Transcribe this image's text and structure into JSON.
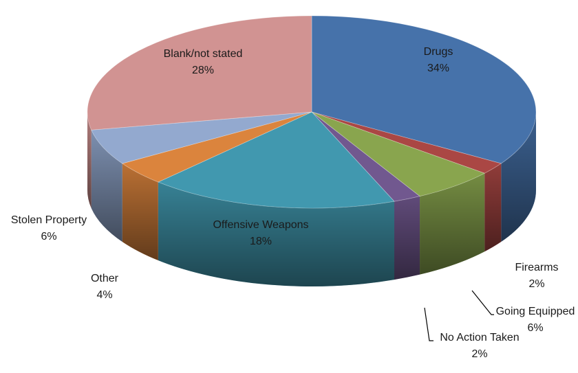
{
  "chart_data": {
    "type": "pie",
    "title": "",
    "style": "3d",
    "slices": [
      {
        "label": "Drugs",
        "value": 34,
        "display": "34%",
        "color": "#4672AA"
      },
      {
        "label": "Firearms",
        "value": 2,
        "display": "2%",
        "color": "#AA4744"
      },
      {
        "label": "Going Equipped",
        "value": 6,
        "display": "6%",
        "color": "#89A54E"
      },
      {
        "label": "No Action Taken",
        "value": 2,
        "display": "2%",
        "color": "#71588F"
      },
      {
        "label": "Offensive Weapons",
        "value": 18,
        "display": "18%",
        "color": "#4198AF"
      },
      {
        "label": "Other",
        "value": 4,
        "display": "4%",
        "color": "#DB843D"
      },
      {
        "label": "Stolen Property",
        "value": 6,
        "display": "6%",
        "color": "#93A9CF"
      },
      {
        "label": "Blank/not stated",
        "value": 28,
        "display": "28%",
        "color": "#D19392"
      }
    ]
  }
}
